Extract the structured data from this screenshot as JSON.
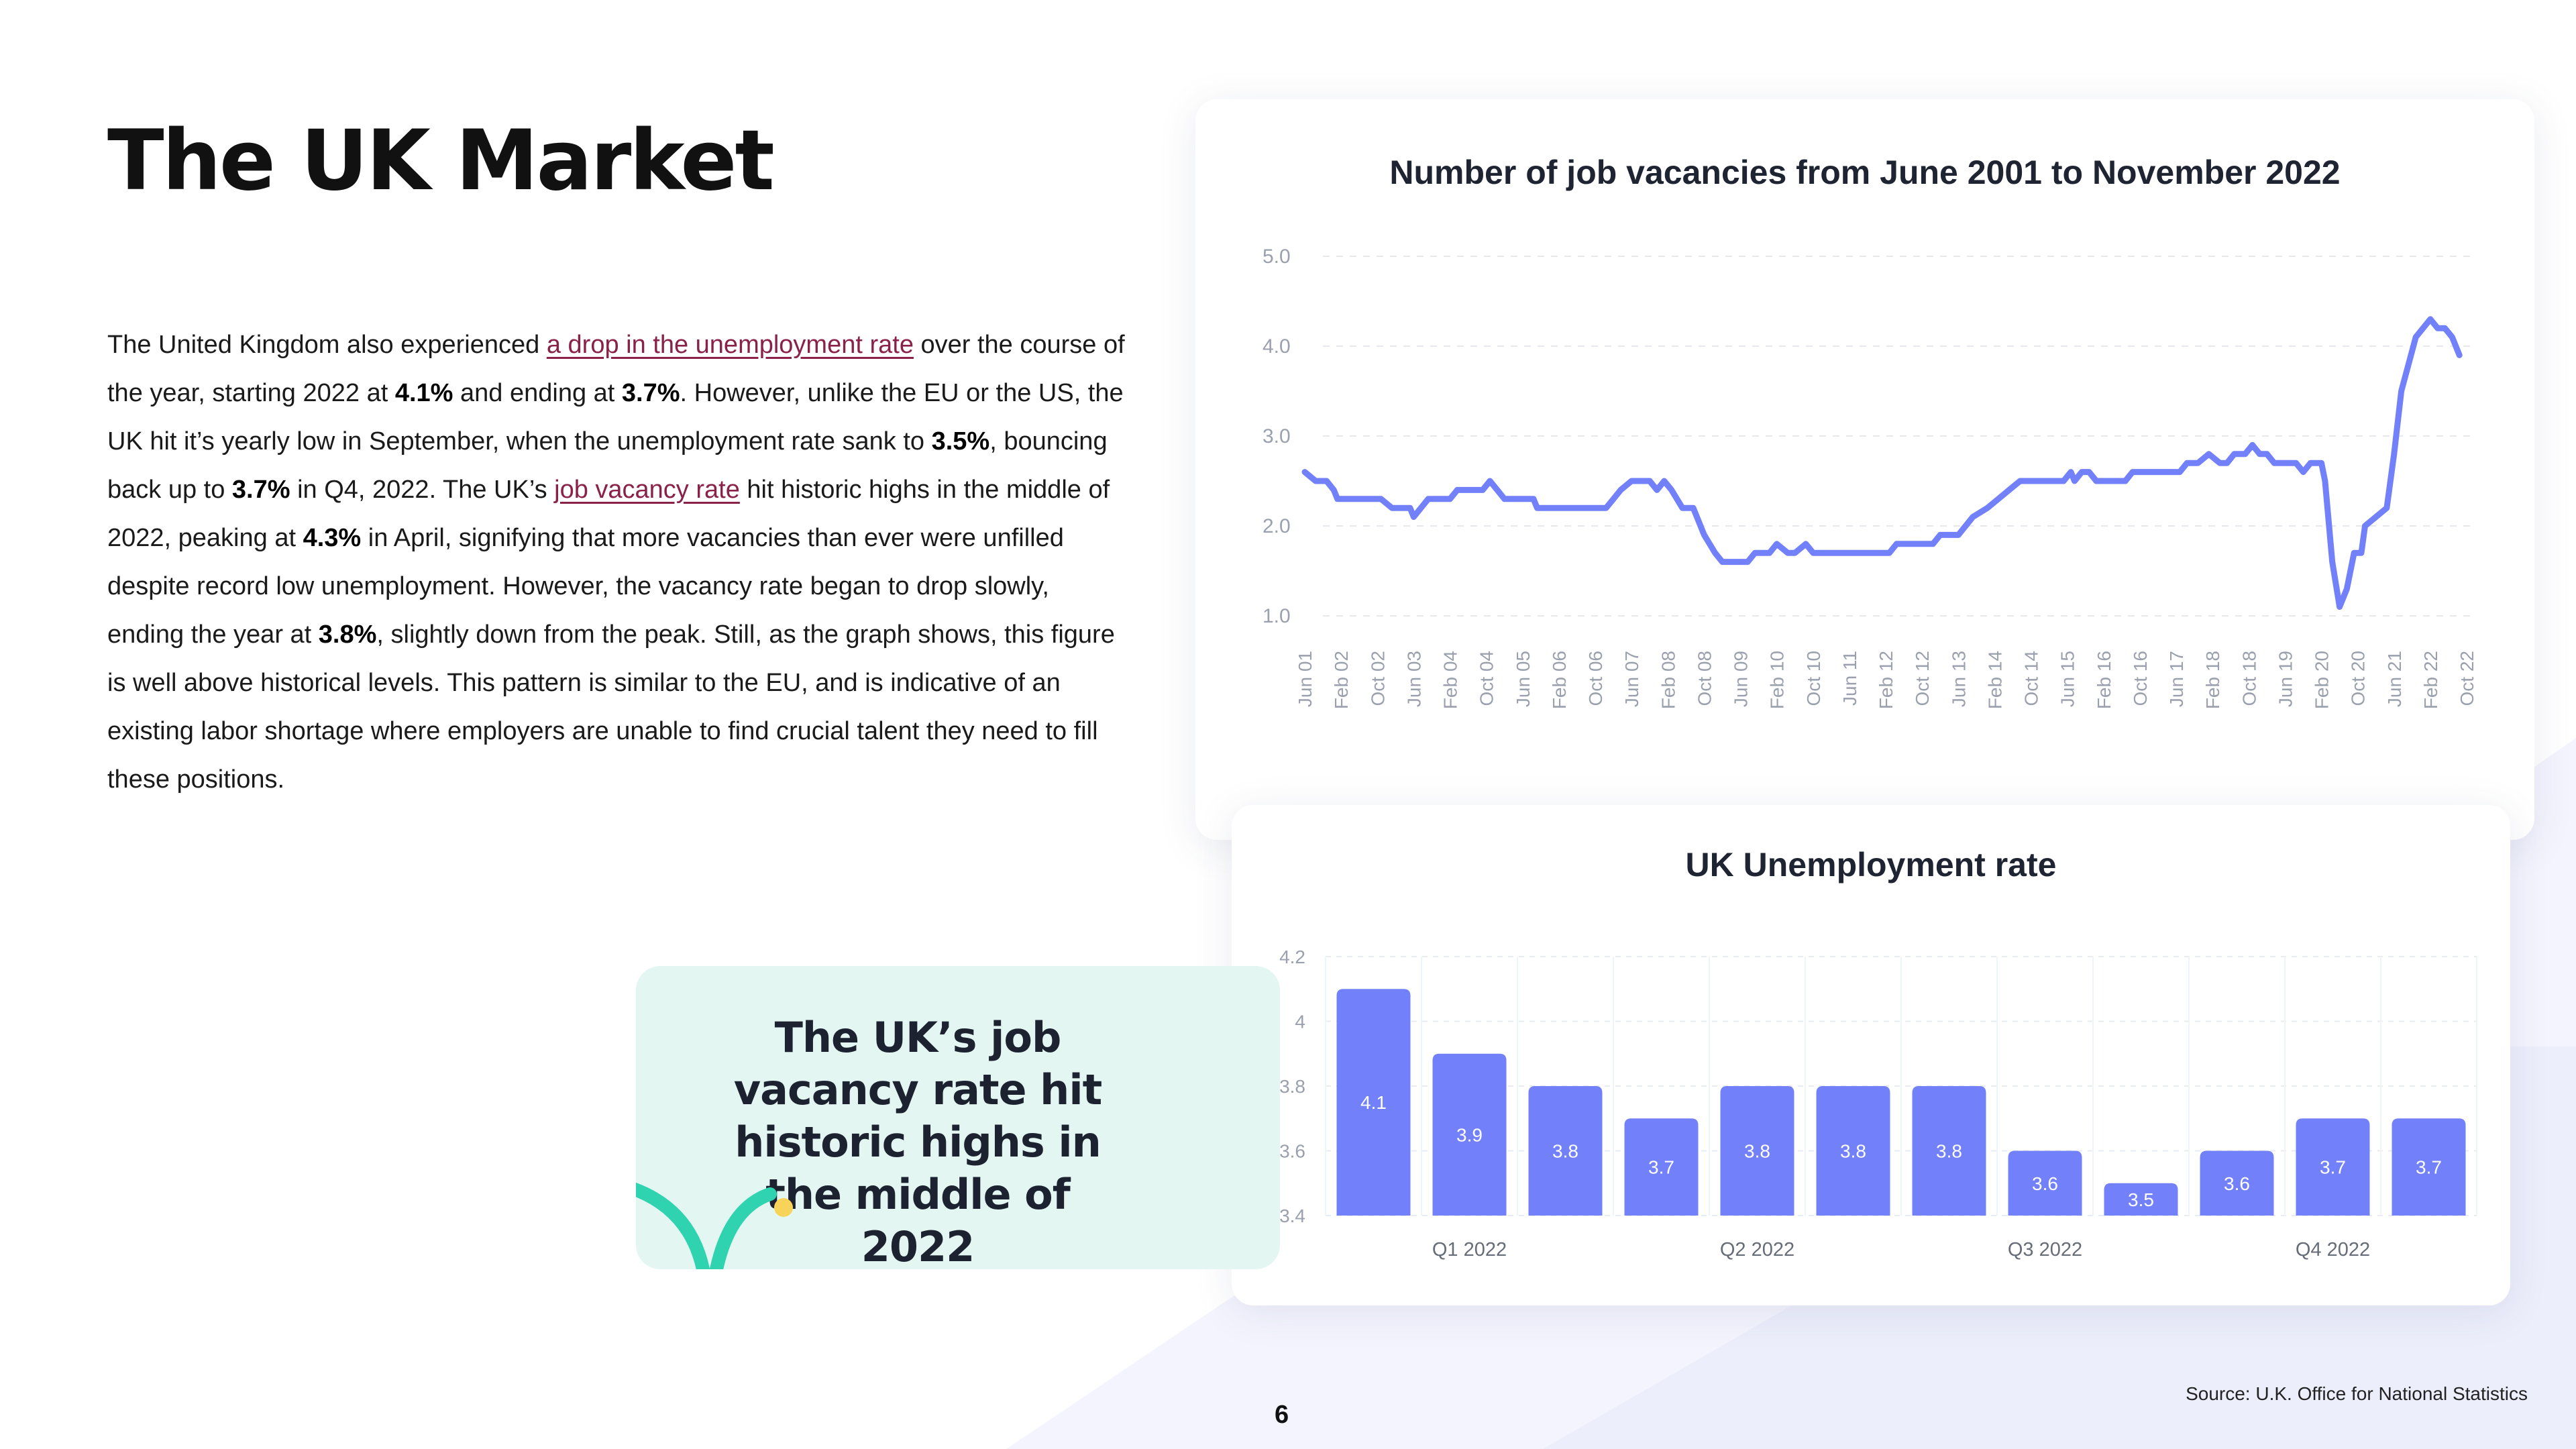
{
  "page": {
    "title": "The UK Market",
    "paragraph": [
      {
        "t": "The United Kingdom also experienced "
      },
      {
        "t": "a drop in the unemployment rate",
        "link": true
      },
      {
        "t": " over the course of the year, starting 2022 at "
      },
      {
        "t": "4.1%",
        "bold": true
      },
      {
        "t": " and ending at "
      },
      {
        "t": "3.7%",
        "bold": true
      },
      {
        "t": ". However, unlike the EU or the US, the UK hit it’s yearly low in September, when the unemployment rate sank to "
      },
      {
        "t": "3.5%",
        "bold": true
      },
      {
        "t": ", bouncing back up to "
      },
      {
        "t": "3.7%",
        "bold": true
      },
      {
        "t": " in Q4, 2022. The UK’s "
      },
      {
        "t": "job vacancy rate",
        "link": true
      },
      {
        "t": " hit historic highs in the middle of 2022, peaking at "
      },
      {
        "t": "4.3%",
        "bold": true
      },
      {
        "t": " in April, signifying that more vacancies than ever were unfilled despite record low unemployment. However, the vacancy rate began to drop slowly, ending the year at "
      },
      {
        "t": "3.8%",
        "bold": true
      },
      {
        "t": ", slightly down from the peak. Still, as the graph shows, this figure is well above historical levels. This pattern is similar to the EU, and is indicative of an existing labor shortage where employers are unable to find crucial talent they need to fill these positions."
      }
    ],
    "callout": "The UK’s job vacancy rate hit historic highs in the middle of 2022",
    "page_number": "6",
    "source": "Source: U.K. Office for National Statistics"
  },
  "colors": {
    "accent": "#7281fa",
    "link": "#8a2148",
    "callout_bg": "#e3f6f1",
    "callout_curve": "#2fd3b0",
    "callout_dot": "#f7d35a",
    "bg_shape": "#f1f2fc"
  },
  "chart_data": [
    {
      "type": "line",
      "title": "Number of job vacancies from June 2001 to November 2022",
      "ylim": [
        1.0,
        5.0
      ],
      "y_ticks": [
        "5.0",
        "4.0",
        "3.0",
        "2.0",
        "1.0"
      ],
      "x_ticks": [
        "Jun 01",
        "Feb 02",
        "Oct 02",
        "Jun 03",
        "Feb 04",
        "Oct 04",
        "Jun 05",
        "Feb 06",
        "Oct 06",
        "Jun 07",
        "Feb 08",
        "Oct 08",
        "Jun 09",
        "Feb 10",
        "Oct 10",
        "Jun 11",
        "Feb 12",
        "Oct 12",
        "Jun 13",
        "Feb 14",
        "Oct 14",
        "Jun 15",
        "Feb 16",
        "Oct 16",
        "Jun 17",
        "Feb 18",
        "Oct 18",
        "Jun 19",
        "Feb 20",
        "Oct 20",
        "Jun 21",
        "Feb 22",
        "Oct 22"
      ],
      "grid": true,
      "series": [
        {
          "points": [
            [
              0,
              2.6
            ],
            [
              0.3,
              2.5
            ],
            [
              0.6,
              2.5
            ],
            [
              0.8,
              2.4
            ],
            [
              0.9,
              2.3
            ],
            [
              1.5,
              2.3
            ],
            [
              2.1,
              2.3
            ],
            [
              2.4,
              2.2
            ],
            [
              2.9,
              2.2
            ],
            [
              3.0,
              2.1
            ],
            [
              3.2,
              2.2
            ],
            [
              3.4,
              2.3
            ],
            [
              4.0,
              2.3
            ],
            [
              4.2,
              2.4
            ],
            [
              4.9,
              2.4
            ],
            [
              5.1,
              2.5
            ],
            [
              5.3,
              2.4
            ],
            [
              5.5,
              2.3
            ],
            [
              6.3,
              2.3
            ],
            [
              6.4,
              2.2
            ],
            [
              8.3,
              2.2
            ],
            [
              8.5,
              2.3
            ],
            [
              8.7,
              2.4
            ],
            [
              9.0,
              2.5
            ],
            [
              9.5,
              2.5
            ],
            [
              9.7,
              2.4
            ],
            [
              9.9,
              2.5
            ],
            [
              10.1,
              2.4
            ],
            [
              10.4,
              2.2
            ],
            [
              10.7,
              2.2
            ],
            [
              11.0,
              1.9
            ],
            [
              11.3,
              1.7
            ],
            [
              11.5,
              1.6
            ],
            [
              12.2,
              1.6
            ],
            [
              12.4,
              1.7
            ],
            [
              12.8,
              1.7
            ],
            [
              13.0,
              1.8
            ],
            [
              13.3,
              1.7
            ],
            [
              13.5,
              1.7
            ],
            [
              13.8,
              1.8
            ],
            [
              14.0,
              1.7
            ],
            [
              16.1,
              1.7
            ],
            [
              16.3,
              1.8
            ],
            [
              17.3,
              1.8
            ],
            [
              17.5,
              1.9
            ],
            [
              18.0,
              1.9
            ],
            [
              18.2,
              2.0
            ],
            [
              18.4,
              2.1
            ],
            [
              18.8,
              2.2
            ],
            [
              19.1,
              2.3
            ],
            [
              19.4,
              2.4
            ],
            [
              19.7,
              2.5
            ],
            [
              20.6,
              2.5
            ],
            [
              20.9,
              2.5
            ],
            [
              21.1,
              2.6
            ],
            [
              21.2,
              2.5
            ],
            [
              21.4,
              2.6
            ],
            [
              21.6,
              2.6
            ],
            [
              21.8,
              2.5
            ],
            [
              22.6,
              2.5
            ],
            [
              22.8,
              2.6
            ],
            [
              24.1,
              2.6
            ],
            [
              24.3,
              2.7
            ],
            [
              24.6,
              2.7
            ],
            [
              24.9,
              2.8
            ],
            [
              25.2,
              2.7
            ],
            [
              25.4,
              2.7
            ],
            [
              25.6,
              2.8
            ],
            [
              25.9,
              2.8
            ],
            [
              26.1,
              2.9
            ],
            [
              26.3,
              2.8
            ],
            [
              26.5,
              2.8
            ],
            [
              26.7,
              2.7
            ],
            [
              27.3,
              2.7
            ],
            [
              27.5,
              2.6
            ],
            [
              27.7,
              2.7
            ],
            [
              28.0,
              2.7
            ],
            [
              28.1,
              2.5
            ],
            [
              28.3,
              1.6
            ],
            [
              28.5,
              1.1
            ],
            [
              28.7,
              1.3
            ],
            [
              28.9,
              1.7
            ],
            [
              29.1,
              1.7
            ],
            [
              29.2,
              2.0
            ],
            [
              29.5,
              2.1
            ],
            [
              29.8,
              2.2
            ],
            [
              30.0,
              2.8
            ],
            [
              30.2,
              3.5
            ],
            [
              30.4,
              3.8
            ],
            [
              30.6,
              4.1
            ],
            [
              30.8,
              4.2
            ],
            [
              31.0,
              4.3
            ],
            [
              31.2,
              4.2
            ],
            [
              31.4,
              4.2
            ],
            [
              31.6,
              4.1
            ],
            [
              31.8,
              3.9
            ]
          ]
        }
      ]
    },
    {
      "type": "bar",
      "title": "UK Unemployment rate",
      "ylim": [
        3.4,
        4.2
      ],
      "y_ticks": [
        "4.2",
        "4",
        "3.8",
        "3.6",
        "3.4"
      ],
      "values": [
        4.1,
        3.9,
        3.8,
        3.7,
        3.8,
        3.8,
        3.8,
        3.6,
        3.5,
        3.6,
        3.7,
        3.7
      ],
      "labels": [
        "4.1",
        "3.9",
        "3.8",
        "3.7",
        "3.8",
        "3.8",
        "3.8",
        "3.6",
        "3.5",
        "3.6",
        "3.7",
        "3.7"
      ],
      "groups": [
        "Q1 2022",
        "Q2 2022",
        "Q3 2022",
        "Q4 2022"
      ],
      "grid": true
    }
  ]
}
